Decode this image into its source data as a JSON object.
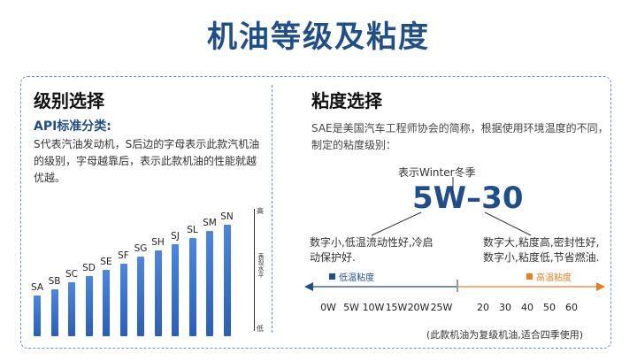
{
  "title": "机油等级及粘度",
  "left": {
    "heading": "级别选择",
    "api_title": "API标准分类:",
    "description": "S代表汽油发动机，S后边的字母表示此款汽机油的级别，字母越靠后，表示此款机油的性能就越优越。",
    "grades": [
      "SA",
      "SB",
      "SC",
      "SD",
      "SE",
      "SF",
      "SG",
      "SH",
      "SJ",
      "SL",
      "SM",
      "SN"
    ],
    "grade_levels": [
      1,
      2,
      3,
      4,
      5,
      6,
      7,
      8,
      9,
      10,
      11,
      12
    ],
    "axis_high": "高",
    "axis_low": "低",
    "axis_mid": "表现水平"
  },
  "right": {
    "heading": "粘度选择",
    "description": "SAE是美国汽车工程师协会的简称，根据使用环境温度的不同，制定的粘度级别：",
    "winter_note": "表示Winter冬季",
    "code": "5W–30",
    "low_desc": "数字小,低温流动性好,冷启动保护好.",
    "high_desc": "数字大,粘度高,密封性好,数字小,粘度低,节省燃油.",
    "legend_low": "低温粘度",
    "legend_high": "高温粘度",
    "low_ticks": [
      "0W",
      "5W",
      "10W",
      "15W",
      "20W",
      "25W"
    ],
    "high_ticks": [
      "20",
      "30",
      "40",
      "50",
      "60"
    ],
    "footnote": "(此款机油为复级机油,适合四季使用)",
    "colors": {
      "low": "#1f4e8c",
      "high": "#e67e22"
    }
  }
}
